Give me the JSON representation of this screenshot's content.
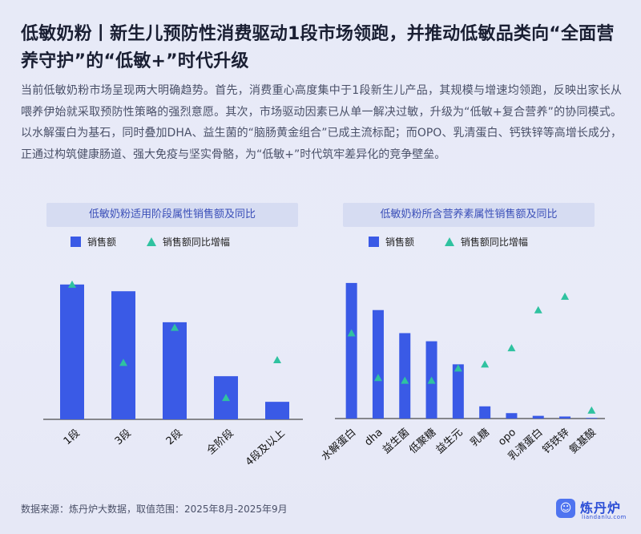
{
  "title": "低敏奶粉丨新生儿预防性消费驱动1段市场领跑，并推动低敏品类向“全面营养守护”的“低敏+”时代升级",
  "body": "当前低敏奶粉市场呈现两大明确趋势。首先，消费重心高度集中于1段新生儿产品，其规模与增速均领跑，反映出家长从喂养伊始就采取预防性策略的强烈意愿。其次，市场驱动因素已从单一解决过敏，升级为“低敏+复合营养”的协同模式。以水解蛋白为基石，同时叠加DHA、益生菌的“脑肠黄金组合”已成主流标配；而OPO、乳清蛋白、钙铁锌等高增长成分，正通过构筑健康肠道、强大免疫与坚实骨骼，为“低敏+”时代筑牢差异化的竞争壁垒。",
  "footer": "数据来源：炼丹炉大数据，取值范围：2025年8月-2025年9月",
  "logo": {
    "name": "炼丹炉",
    "sub": "liandanlu.com",
    "badge_icon": "chat-bubble-icon"
  },
  "colors": {
    "bar": "#3a5ae6",
    "marker": "#2fc2a0",
    "panel_title_bg": "#d6dcf2",
    "panel_title_text": "#3b4fb8"
  },
  "chart_data": [
    {
      "type": "bar",
      "title": "低敏奶粉适用阶段属性销售额及同比",
      "legend": {
        "placement": "top",
        "items": [
          "销售额",
          "销售额同比增幅"
        ]
      },
      "categories": [
        "1段",
        "3段",
        "2段",
        "全阶段",
        "4段及以上"
      ],
      "series": [
        {
          "name": "销售额",
          "type": "bar",
          "values": [
            100,
            95,
            72,
            32,
            13
          ]
        },
        {
          "name": "销售额同比增幅",
          "type": "scatter",
          "marker": "triangle",
          "values": [
            100,
            42,
            68,
            16,
            44
          ]
        }
      ],
      "ylim": [
        0,
        110
      ],
      "grid": false,
      "yaxis_visible": false
    },
    {
      "type": "bar",
      "title": "低敏奶粉所含营养素属性销售额及同比",
      "legend": {
        "placement": "top",
        "items": [
          "销售额",
          "销售额同比增幅"
        ]
      },
      "categories": [
        "水解蛋白",
        "dha",
        "益生菌",
        "低聚糖",
        "益生元",
        "乳糖",
        "opo",
        "乳清蛋白",
        "钙铁锌",
        "氨基酸"
      ],
      "series": [
        {
          "name": "销售额",
          "type": "bar",
          "values": [
            100,
            80,
            63,
            57,
            40,
            9,
            4,
            2,
            1.5,
            0.5
          ]
        },
        {
          "name": "销售额同比增幅",
          "type": "scatter",
          "marker": "triangle",
          "values": [
            63,
            30,
            28,
            28,
            37,
            40,
            52,
            80,
            90,
            6
          ]
        }
      ],
      "ylim": [
        0,
        110
      ],
      "grid": false,
      "yaxis_visible": false
    }
  ]
}
